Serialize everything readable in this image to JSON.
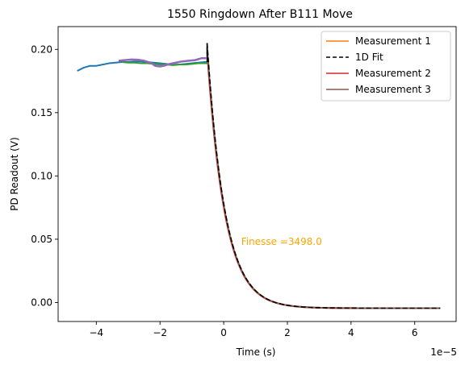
{
  "chart_data": {
    "type": "line",
    "title": "1550 Ringdown After B111 Move",
    "xlabel": "Time (s)",
    "ylabel": "PD Readout (V)",
    "x_offset_label": "1e−5",
    "xlim": [
      -5.2,
      7.3
    ],
    "ylim": [
      -0.015,
      0.218
    ],
    "x_ticks": [
      -4,
      -2,
      0,
      2,
      4,
      6
    ],
    "x_tick_labels": [
      "−4",
      "−2",
      "0",
      "2",
      "4",
      "6"
    ],
    "y_ticks": [
      0.0,
      0.05,
      0.1,
      0.15,
      0.2
    ],
    "y_tick_labels": [
      "0.00",
      "0.05",
      "0.10",
      "0.15",
      "0.20"
    ],
    "annotation": {
      "text": "Finesse =3498.0",
      "x": 0.55,
      "y": 0.048,
      "color": "#ffa500"
    },
    "legend_position": "top-right",
    "legend": [
      {
        "label": "Measurement 1",
        "color": "#ff7f0e",
        "dash": "solid"
      },
      {
        "label": "1D Fit",
        "color": "#000000",
        "dash": "dashed"
      },
      {
        "label": "Measurement 2",
        "color": "#d62728",
        "dash": "solid"
      },
      {
        "label": "Measurement 3",
        "color": "#8c564b",
        "dash": "solid"
      }
    ],
    "series": [
      {
        "color": "#1f77b4",
        "width": 2,
        "dash": "solid",
        "x": [
          -4.6,
          -4.4,
          -4.2,
          -4.0,
          -3.8,
          -3.6,
          -3.4,
          -3.2,
          -3.0,
          -2.8,
          -2.6,
          -2.4,
          -2.2,
          -2.0,
          -1.8,
          -1.6,
          -1.4,
          -1.2,
          -1.0,
          -0.8,
          -0.6,
          -0.5
        ],
        "y": [
          0.183,
          0.1855,
          0.187,
          0.187,
          0.188,
          0.189,
          0.1895,
          0.19,
          0.19,
          0.1905,
          0.1905,
          0.19,
          0.1895,
          0.189,
          0.1885,
          0.188,
          0.188,
          0.1885,
          0.189,
          0.1895,
          0.19,
          0.19
        ]
      },
      {
        "color": "#2ca02c",
        "width": 2,
        "dash": "solid",
        "x": [
          -3.2,
          -3.0,
          -2.8,
          -2.6,
          -2.4,
          -2.2,
          -2.0,
          -1.8,
          -1.6,
          -1.4,
          -1.2,
          -1.0,
          -0.8,
          -0.6,
          -0.5
        ],
        "y": [
          0.19,
          0.1895,
          0.1895,
          0.189,
          0.189,
          0.1885,
          0.188,
          0.188,
          0.1875,
          0.188,
          0.188,
          0.1885,
          0.189,
          0.189,
          0.189
        ]
      },
      {
        "color": "#9467bd",
        "width": 2.5,
        "dash": "solid",
        "x": [
          -3.3,
          -3.1,
          -2.9,
          -2.7,
          -2.5,
          -2.3,
          -2.15,
          -2.0,
          -1.85,
          -1.7,
          -1.5,
          -1.3,
          -1.1,
          -0.9,
          -0.7,
          -0.55
        ],
        "y": [
          0.191,
          0.1915,
          0.192,
          0.1918,
          0.191,
          0.1895,
          0.187,
          0.1865,
          0.1872,
          0.1885,
          0.1895,
          0.1905,
          0.191,
          0.1915,
          0.193,
          0.193
        ]
      }
    ],
    "decay": {
      "description": "ringdown decay curves after t0",
      "t0": -0.52,
      "y_start": 0.205,
      "y_floor": -0.0045,
      "tau": 0.56,
      "x_end": 6.8,
      "curves": [
        {
          "label": "Measurement 1",
          "color": "#ff7f0e",
          "width": 2,
          "dash": "solid",
          "y_start": 0.2
        },
        {
          "label": "Measurement 2",
          "color": "#d62728",
          "width": 2,
          "dash": "solid",
          "y_start": 0.198
        },
        {
          "label": "Measurement 3",
          "color": "#8c564b",
          "width": 2,
          "dash": "solid",
          "y_start": 0.202
        },
        {
          "label": "1D Fit",
          "color": "#000000",
          "width": 1.6,
          "dash": "dashed",
          "y_start": 0.205
        }
      ]
    }
  }
}
